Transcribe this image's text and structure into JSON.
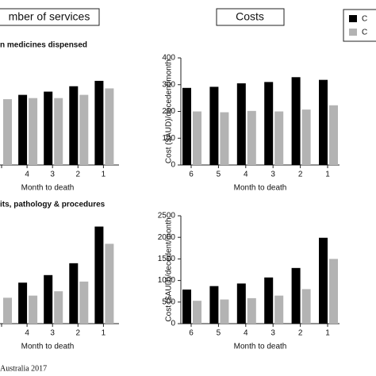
{
  "panel_headers": [
    "mber of services",
    "Costs"
  ],
  "source": "Australia 2017",
  "chart_data": [
    {
      "type": "bar",
      "title": "n medicines dispensed",
      "x_label": "Month to death",
      "categories": [
        null,
        "4",
        "3",
        "2",
        "1"
      ],
      "ylim": [
        0,
        100
      ],
      "series": [
        {
          "name": "C",
          "color": "#000000",
          "values": [
            null,
            65,
            68,
            73,
            78
          ]
        },
        {
          "name": "C",
          "color": "#b3b3b3",
          "values": [
            61,
            62,
            62,
            65,
            71
          ]
        }
      ]
    },
    {
      "type": "bar",
      "x_label": "Month to death",
      "y_label": "Cost ($AUD)/decedent/month",
      "categories": [
        "6",
        "5",
        "4",
        "3",
        "2",
        "1"
      ],
      "ylim": [
        0,
        400
      ],
      "yticks": [
        0,
        100,
        200,
        300,
        400
      ],
      "series": [
        {
          "name": "C",
          "color": "#000000",
          "values": [
            288,
            292,
            305,
            310,
            328,
            318
          ]
        },
        {
          "name": "C",
          "color": "#b3b3b3",
          "values": [
            200,
            197,
            202,
            200,
            207,
            223
          ]
        }
      ]
    },
    {
      "type": "bar",
      "title": "its, pathology & procedures",
      "x_label": "Month to death",
      "categories": [
        null,
        "4",
        "3",
        "2",
        "1"
      ],
      "ylim": [
        0,
        100
      ],
      "series": [
        {
          "name": "C",
          "color": "#000000",
          "values": [
            null,
            38,
            45,
            56,
            90
          ]
        },
        {
          "name": "C",
          "color": "#b3b3b3",
          "values": [
            24,
            26,
            30,
            39,
            74
          ]
        }
      ]
    },
    {
      "type": "bar",
      "x_label": "Month to death",
      "y_label": "Cost ($AUD)/decedent/month",
      "categories": [
        "6",
        "5",
        "4",
        "3",
        "2",
        "1"
      ],
      "ylim": [
        0,
        2500
      ],
      "yticks": [
        0,
        500,
        1000,
        1500,
        2000,
        2500
      ],
      "series": [
        {
          "name": "C",
          "color": "#000000",
          "values": [
            790,
            870,
            930,
            1070,
            1290,
            1990
          ]
        },
        {
          "name": "C",
          "color": "#b3b3b3",
          "values": [
            530,
            560,
            590,
            650,
            800,
            1500
          ]
        }
      ]
    }
  ]
}
